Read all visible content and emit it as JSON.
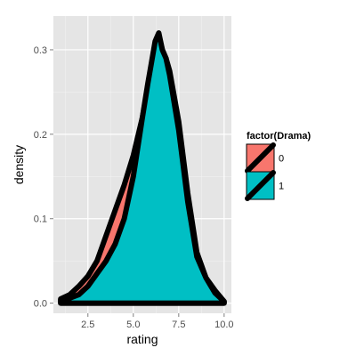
{
  "chart_data": {
    "type": "area",
    "subtype": "density",
    "xlabel": "rating",
    "ylabel": "density",
    "xlim": [
      0.6,
      10.4
    ],
    "ylim": [
      -0.012,
      0.34
    ],
    "x_ticks": [
      2.5,
      5.0,
      7.5,
      10.0
    ],
    "x_tick_labels": [
      "2.5",
      "5.0",
      "7.5",
      "10.0"
    ],
    "y_ticks": [
      0.0,
      0.1,
      0.2,
      0.3
    ],
    "y_tick_labels": [
      "0.0",
      "0.1",
      "0.2",
      "0.3"
    ],
    "grid": true,
    "panel_background": "#e5e5e5",
    "grid_color": "#ffffff",
    "legend": {
      "title": "factor(Drama)",
      "position": "right"
    },
    "series": [
      {
        "name": "0",
        "color": "#f8766d",
        "x": [
          1.0,
          1.5,
          2.0,
          2.5,
          3.0,
          3.5,
          4.0,
          4.5,
          5.0,
          5.5,
          5.8,
          6.0,
          6.2,
          6.4,
          6.6,
          6.8,
          7.0,
          7.5,
          8.0,
          8.5,
          9.0,
          9.5,
          10.0
        ],
        "y": [
          0.005,
          0.01,
          0.02,
          0.032,
          0.05,
          0.08,
          0.11,
          0.14,
          0.175,
          0.22,
          0.255,
          0.28,
          0.305,
          0.318,
          0.3,
          0.29,
          0.275,
          0.215,
          0.13,
          0.06,
          0.03,
          0.015,
          0.002
        ]
      },
      {
        "name": "1",
        "color": "#00bfc4",
        "x": [
          1.0,
          1.5,
          2.0,
          2.5,
          3.0,
          3.5,
          4.0,
          4.5,
          5.0,
          5.5,
          5.8,
          6.0,
          6.2,
          6.4,
          6.6,
          6.8,
          7.0,
          7.5,
          8.0,
          8.5,
          9.0,
          9.5,
          10.0
        ],
        "y": [
          0.004,
          0.006,
          0.01,
          0.02,
          0.035,
          0.05,
          0.07,
          0.1,
          0.15,
          0.22,
          0.26,
          0.285,
          0.31,
          0.32,
          0.3,
          0.29,
          0.27,
          0.205,
          0.12,
          0.055,
          0.03,
          0.012,
          0.002
        ]
      }
    ]
  }
}
